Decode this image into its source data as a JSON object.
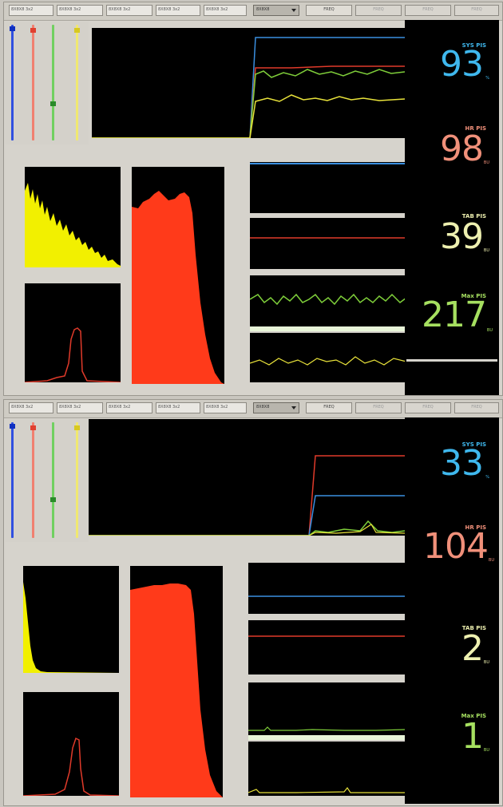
{
  "panels": [
    {
      "toolbar": {
        "tabs": [
          "8X8X8 3x2",
          "8X8X8 3x2",
          "8X8X8 3x2",
          "8X8X8 3x2",
          "8X8X8 3x2"
        ],
        "dropdown": "8X8X8",
        "buttons": [
          "FREQ",
          "FREQ",
          "FREQ",
          "FREQ"
        ]
      },
      "readouts": [
        {
          "label": "SYS PIS",
          "value": "93",
          "unit": "%",
          "color": "#3fb8ee"
        },
        {
          "label": "HR PIS",
          "value": "98",
          "unit": "BU",
          "color": "#f0907a"
        },
        {
          "label": "TAB PIS",
          "value": "39",
          "unit": "BU",
          "color": "#eef0b0"
        },
        {
          "label": "Max PIS",
          "value": "217",
          "unit": "BU",
          "color": "#a6e060"
        }
      ]
    },
    {
      "toolbar": {
        "tabs": [
          "8X8X8 3x2",
          "8X8X8 3x2",
          "8X8X8 3x2",
          "8X8X8 3x2",
          "8X8X8 3x2"
        ],
        "dropdown": "8X8X8",
        "buttons": [
          "FREQ",
          "FREQ",
          "FREQ",
          "FREQ"
        ]
      },
      "readouts": [
        {
          "label": "SYS PIS",
          "value": "33",
          "unit": "%",
          "color": "#3fb8ee"
        },
        {
          "label": "HR PIS",
          "value": "104",
          "unit": "BU",
          "color": "#f0907a"
        },
        {
          "label": "TAB PIS",
          "value": "2",
          "unit": "BU",
          "color": "#eef0b0"
        },
        {
          "label": "Max PIS",
          "value": "1",
          "unit": "BU",
          "color": "#a6e060"
        }
      ]
    }
  ],
  "colors": {
    "blue": "#3a8fe0",
    "red": "#e03a2a",
    "green": "#5fbf3a",
    "yellow": "#e8e23a",
    "fill_red": "#ff3a1a",
    "fill_yellow": "#f2f000"
  },
  "icons": {
    "dropdown": "chevron-down-icon"
  }
}
